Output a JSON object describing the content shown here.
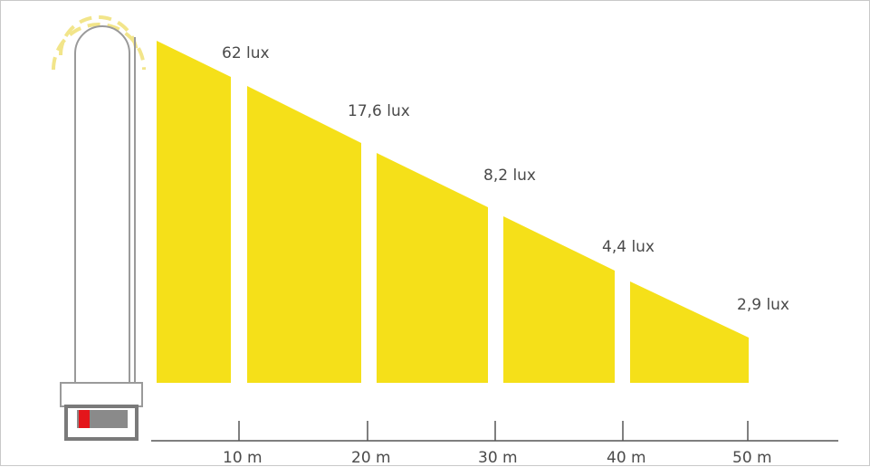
{
  "colors": {
    "light": "#f5e019",
    "lamp_body": "#ffffff",
    "lamp_outline": "#8c8c8c",
    "axis": "#555555",
    "led": "#e4161b",
    "glow": "#f2e58a"
  },
  "icons": [
    "lamp-icon",
    "light-glow-icon"
  ],
  "chart_data": {
    "type": "area",
    "x": [
      "10 m",
      "20 m",
      "30 m",
      "40 m",
      "50 m"
    ],
    "values": [
      "62 lux",
      "17,6 lux",
      "8,2 lux",
      "4,4 lux",
      "2,9 lux"
    ]
  }
}
